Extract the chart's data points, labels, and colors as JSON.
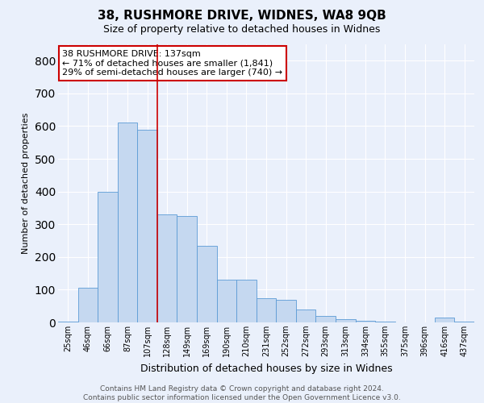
{
  "title": "38, RUSHMORE DRIVE, WIDNES, WA8 9QB",
  "subtitle": "Size of property relative to detached houses in Widnes",
  "xlabel": "Distribution of detached houses by size in Widnes",
  "ylabel": "Number of detached properties",
  "footer": "Contains HM Land Registry data © Crown copyright and database right 2024.\nContains public sector information licensed under the Open Government Licence v3.0.",
  "categories": [
    "25sqm",
    "46sqm",
    "66sqm",
    "87sqm",
    "107sqm",
    "128sqm",
    "149sqm",
    "169sqm",
    "190sqm",
    "210sqm",
    "231sqm",
    "252sqm",
    "272sqm",
    "293sqm",
    "313sqm",
    "334sqm",
    "355sqm",
    "375sqm",
    "396sqm",
    "416sqm",
    "437sqm"
  ],
  "values": [
    2,
    105,
    400,
    610,
    590,
    330,
    325,
    235,
    130,
    130,
    75,
    70,
    40,
    20,
    10,
    5,
    2,
    0,
    0,
    15,
    2
  ],
  "bar_color": "#c5d8f0",
  "bar_edge_color": "#5b9bd5",
  "background_color": "#eaf0fb",
  "grid_color": "#ffffff",
  "annotation_text": "38 RUSHMORE DRIVE: 137sqm\n← 71% of detached houses are smaller (1,841)\n29% of semi-detached houses are larger (740) →",
  "annotation_box_color": "#ffffff",
  "annotation_box_edge_color": "#cc0000",
  "vline_x": 5,
  "vline_color": "#cc0000",
  "ylim": [
    0,
    850
  ],
  "yticks": [
    0,
    100,
    200,
    300,
    400,
    500,
    600,
    700,
    800
  ]
}
